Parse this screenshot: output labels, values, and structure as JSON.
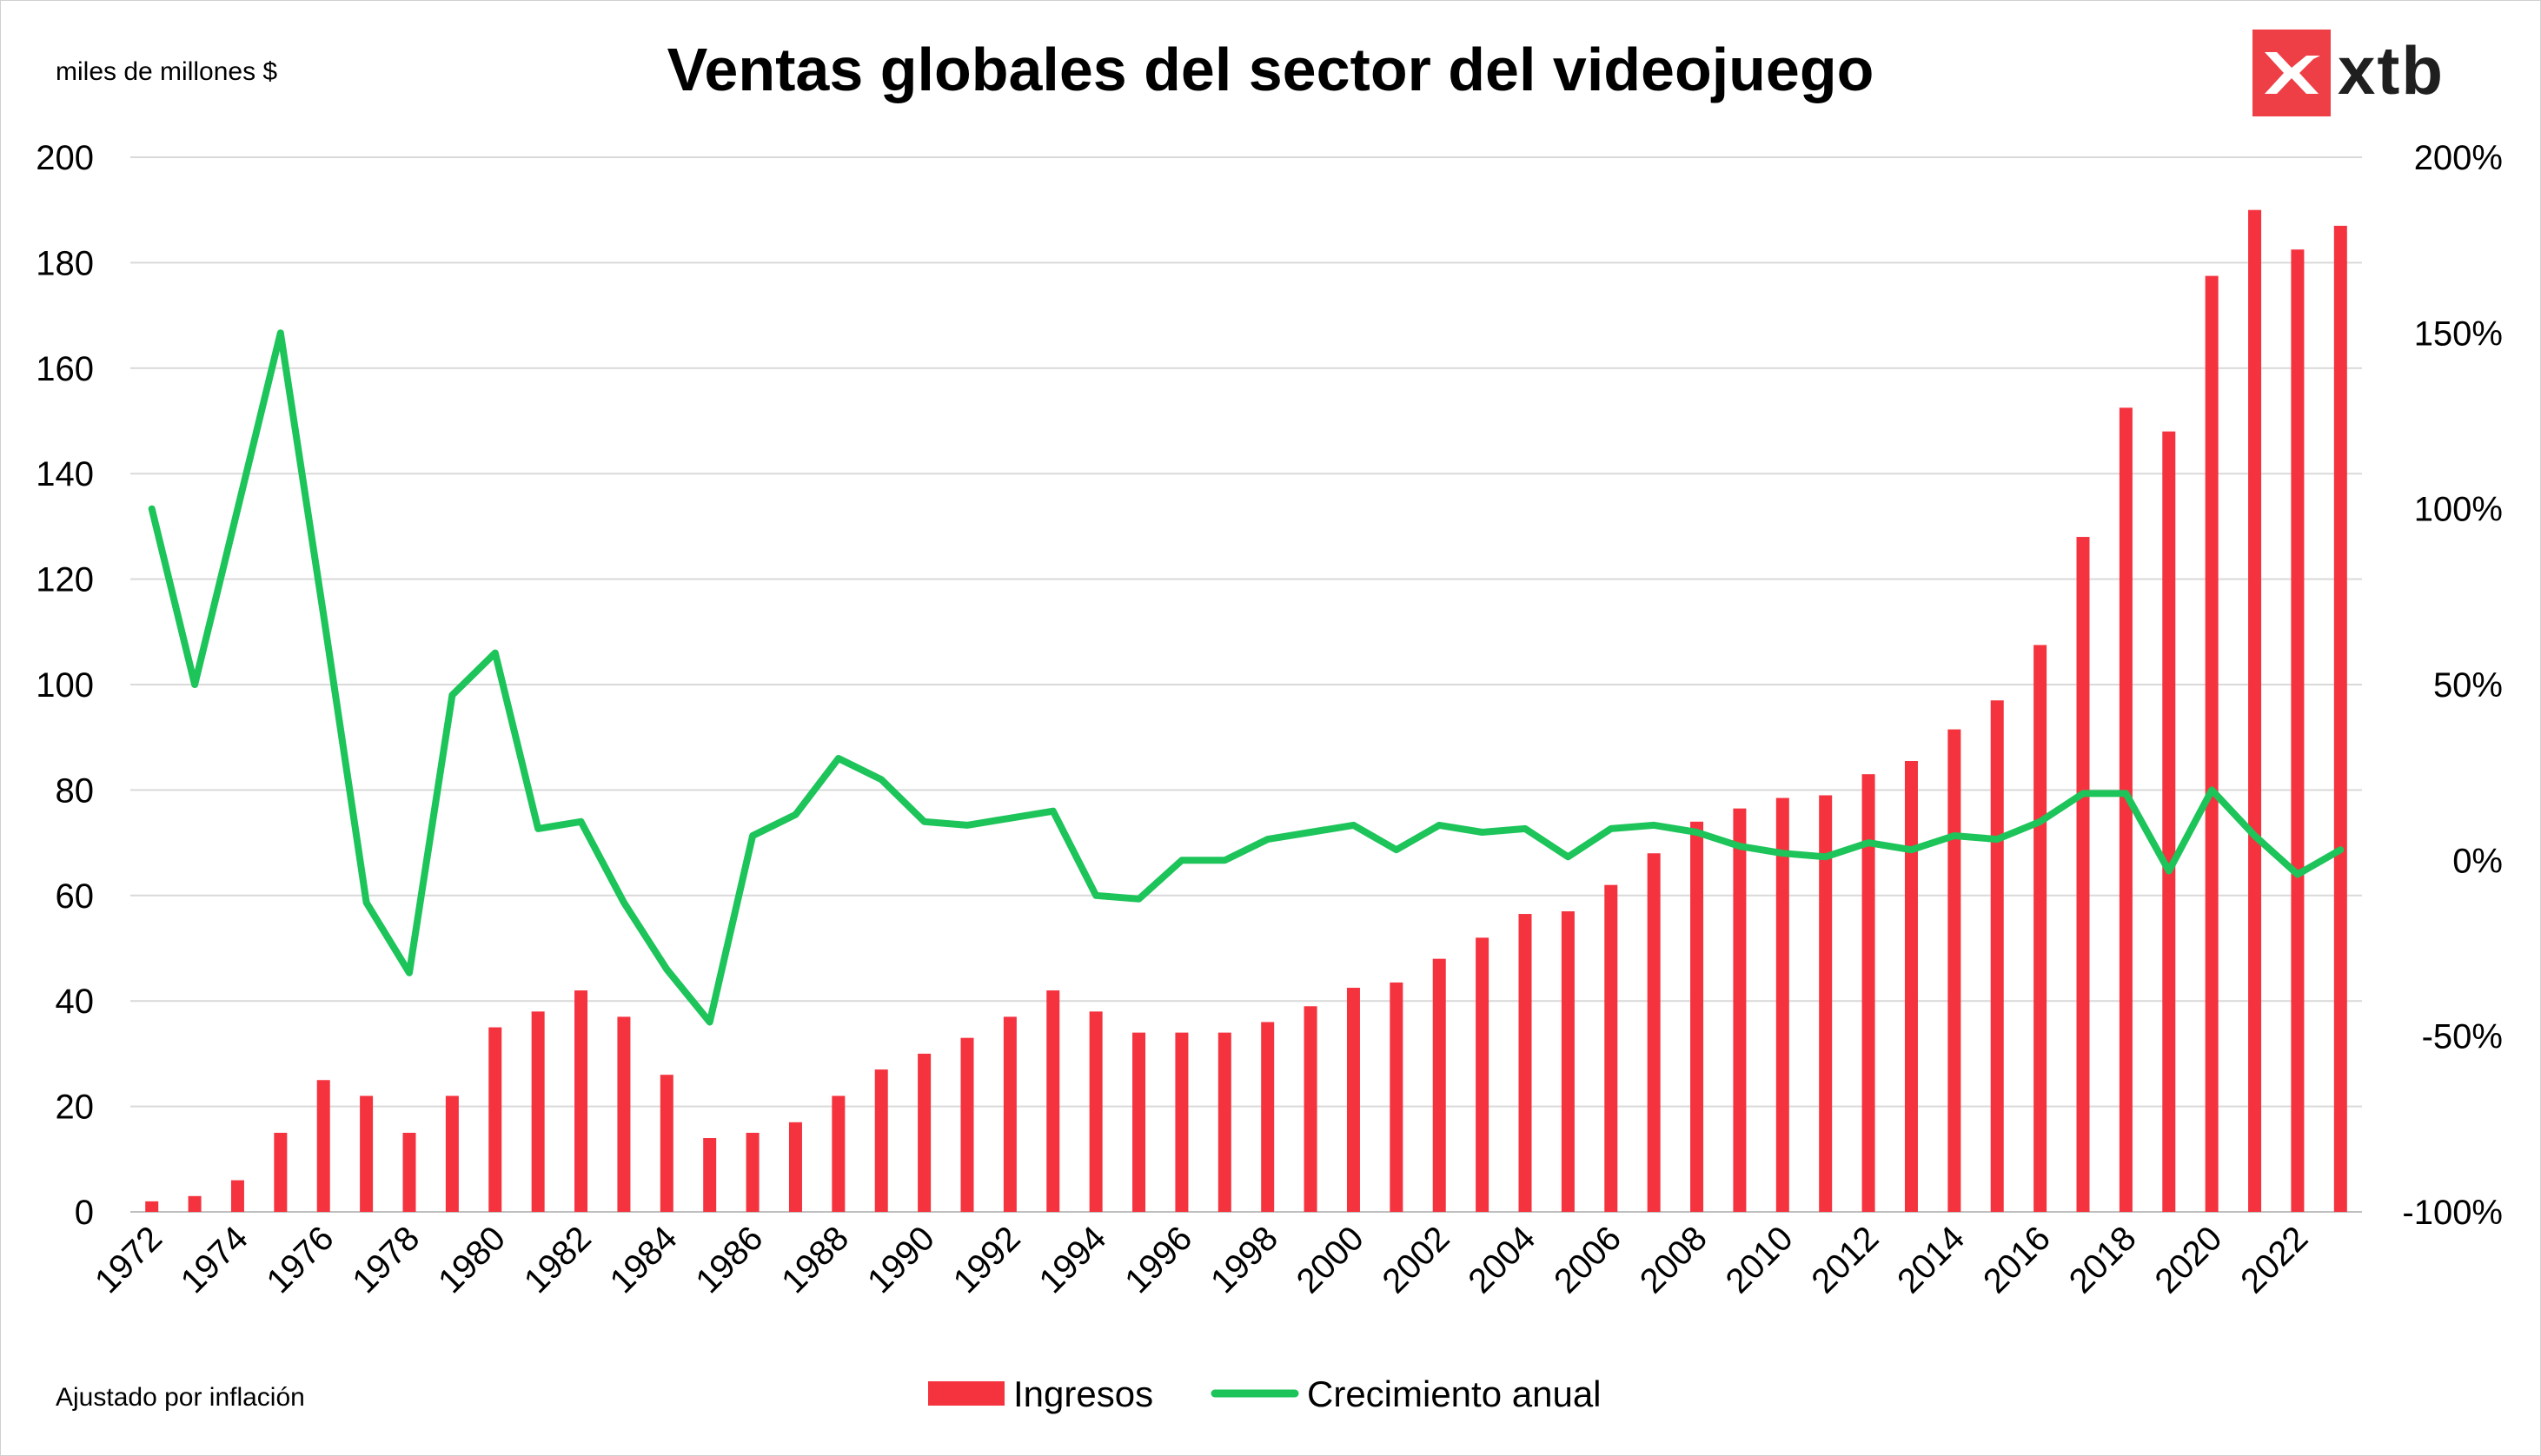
{
  "header": {
    "title": "Ventas globales del sector del videojuego",
    "unit_label": "miles de millones $",
    "footnote": "Ajustado por inflación",
    "logo_text": "xtb"
  },
  "colors": {
    "bars": "#f4333f",
    "line": "#1dc45a",
    "grid": "#d9d9d9",
    "logo": "#ee3f46"
  },
  "chart_data": {
    "type": "bar",
    "title": "Ventas globales del sector del videojuego",
    "x": [
      1972,
      1973,
      1974,
      1975,
      1976,
      1977,
      1978,
      1979,
      1980,
      1981,
      1982,
      1983,
      1984,
      1985,
      1986,
      1987,
      1988,
      1989,
      1990,
      1991,
      1992,
      1993,
      1994,
      1995,
      1996,
      1997,
      1998,
      1999,
      2000,
      2001,
      2002,
      2003,
      2004,
      2005,
      2006,
      2007,
      2008,
      2009,
      2010,
      2011,
      2012,
      2013,
      2014,
      2015,
      2016,
      2017,
      2018,
      2019,
      2020,
      2021,
      2022,
      2023
    ],
    "x_tick_labels": [
      "1972",
      "1974",
      "1976",
      "1978",
      "1980",
      "1982",
      "1984",
      "1986",
      "1988",
      "1990",
      "1992",
      "1994",
      "1996",
      "1998",
      "2000",
      "2002",
      "2004",
      "2006",
      "2008",
      "2010",
      "2012",
      "2014",
      "2016",
      "2018",
      "2020",
      "2022"
    ],
    "series": [
      {
        "name": "Ingresos",
        "type": "bar",
        "axis": "left",
        "values": [
          2,
          3,
          6,
          15,
          25,
          22,
          15,
          22,
          35,
          38,
          42,
          37,
          26,
          14,
          15,
          17,
          22,
          27,
          30,
          33,
          37,
          42,
          38,
          34,
          34,
          34,
          36,
          39,
          42.5,
          43.5,
          48,
          52,
          56.5,
          57,
          62,
          68,
          74,
          76.5,
          78.5,
          79,
          83,
          85.5,
          91.5,
          97,
          107.5,
          128,
          152.5,
          148,
          177.5,
          190,
          182.5,
          187
        ]
      },
      {
        "name": "Crecimiento anual",
        "type": "line",
        "axis": "right",
        "values": [
          100,
          50,
          100,
          150,
          70,
          -12,
          -32,
          47,
          59,
          9,
          11,
          -12,
          -31,
          -46,
          7,
          13,
          29,
          23,
          11,
          10,
          12,
          14,
          -10,
          -11,
          0,
          0,
          6,
          8,
          10,
          3,
          10,
          8,
          9,
          1,
          9,
          10,
          8,
          4,
          2,
          1,
          5,
          3,
          7,
          6,
          11,
          19,
          19,
          -3,
          20,
          7,
          -4,
          3
        ]
      }
    ],
    "y_left": {
      "ylim": [
        0,
        200
      ],
      "ticks": [
        "0",
        "20",
        "40",
        "60",
        "80",
        "100",
        "120",
        "140",
        "160",
        "180",
        "200"
      ]
    },
    "y_right": {
      "ylim": [
        -100,
        200
      ],
      "ticks": [
        "-100%",
        "-50%",
        "0%",
        "50%",
        "100%",
        "150%",
        "200%"
      ]
    },
    "grid": true,
    "legend": "bottom-center"
  }
}
